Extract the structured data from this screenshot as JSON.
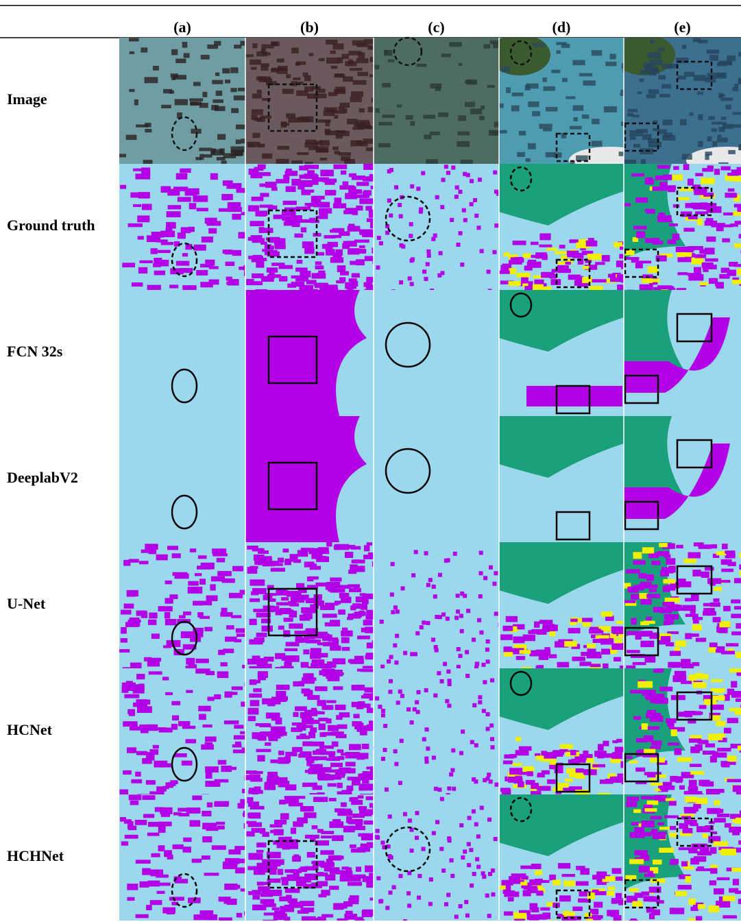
{
  "columns": [
    "(a)",
    "(b)",
    "(c)",
    "(d)",
    "(e)"
  ],
  "rows": [
    "Image",
    "Ground truth",
    "FCN 32s",
    "DeeplabV2",
    "U-Net",
    "HCNet",
    "HCHNet"
  ]
}
